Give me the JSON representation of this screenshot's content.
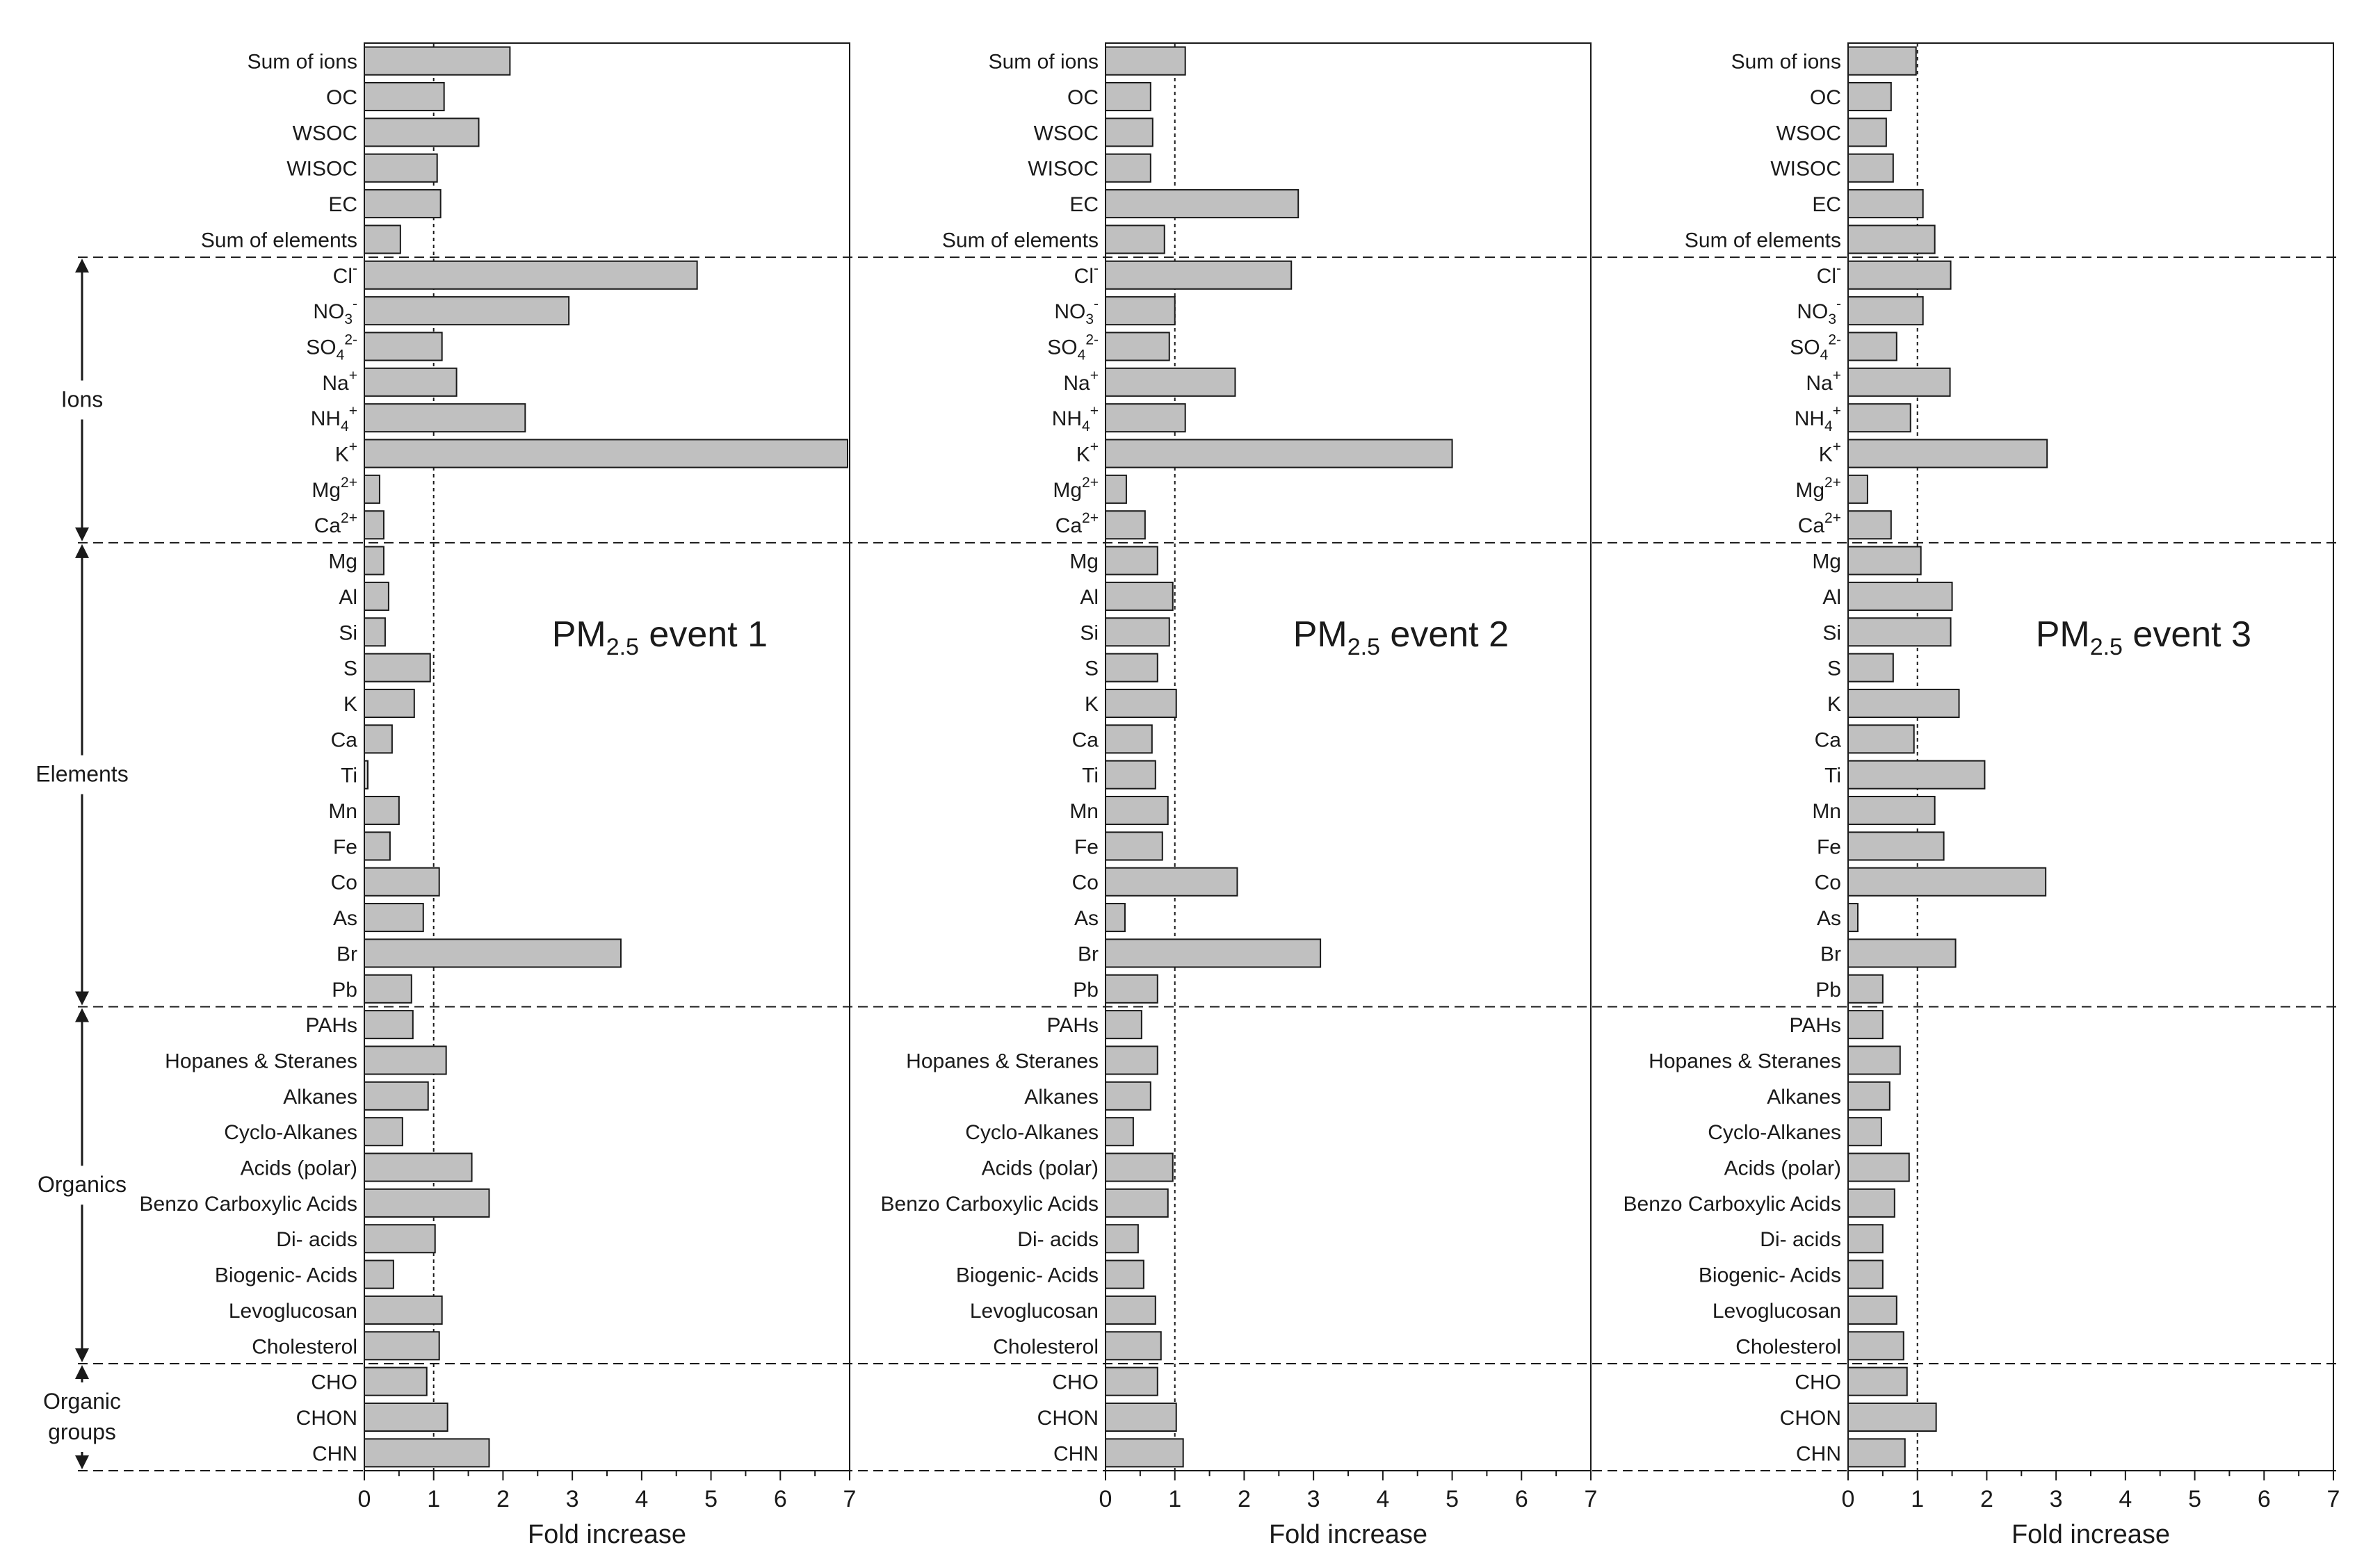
{
  "chart_data": {
    "type": "bar",
    "orientation": "horizontal",
    "xlabel": "Fold increase",
    "xlim": [
      0,
      7
    ],
    "xticks": [
      "0",
      "1",
      "2",
      "3",
      "4",
      "5",
      "6",
      "7"
    ],
    "reference_line": 1,
    "categories": [
      {
        "name": "Sum of ions",
        "sub": "",
        "sup": ""
      },
      {
        "name": "OC",
        "sub": "",
        "sup": ""
      },
      {
        "name": "WSOC",
        "sub": "",
        "sup": ""
      },
      {
        "name": "WISOC",
        "sub": "",
        "sup": ""
      },
      {
        "name": "EC",
        "sub": "",
        "sup": ""
      },
      {
        "name": "Sum of elements",
        "sub": "",
        "sup": ""
      },
      {
        "name": "Cl",
        "sub": "",
        "sup": "-"
      },
      {
        "name": "NO",
        "sub": "3",
        "sup": "-"
      },
      {
        "name": "SO",
        "sub": "4",
        "sup": "2-"
      },
      {
        "name": "Na",
        "sub": "",
        "sup": "+"
      },
      {
        "name": "NH",
        "sub": "4",
        "sup": "+"
      },
      {
        "name": "K",
        "sub": "",
        "sup": "+"
      },
      {
        "name": "Mg",
        "sub": "",
        "sup": "2+"
      },
      {
        "name": "Ca",
        "sub": "",
        "sup": "2+"
      },
      {
        "name": "Mg",
        "sub": "",
        "sup": ""
      },
      {
        "name": "Al",
        "sub": "",
        "sup": ""
      },
      {
        "name": "Si",
        "sub": "",
        "sup": ""
      },
      {
        "name": "S",
        "sub": "",
        "sup": ""
      },
      {
        "name": "K",
        "sub": "",
        "sup": ""
      },
      {
        "name": "Ca",
        "sub": "",
        "sup": ""
      },
      {
        "name": "Ti",
        "sub": "",
        "sup": ""
      },
      {
        "name": "Mn",
        "sub": "",
        "sup": ""
      },
      {
        "name": "Fe",
        "sub": "",
        "sup": ""
      },
      {
        "name": "Co",
        "sub": "",
        "sup": ""
      },
      {
        "name": "As",
        "sub": "",
        "sup": ""
      },
      {
        "name": "Br",
        "sub": "",
        "sup": ""
      },
      {
        "name": "Pb",
        "sub": "",
        "sup": ""
      },
      {
        "name": "PAHs",
        "sub": "",
        "sup": ""
      },
      {
        "name": "Hopanes & Steranes",
        "sub": "",
        "sup": ""
      },
      {
        "name": "Alkanes",
        "sub": "",
        "sup": ""
      },
      {
        "name": "Cyclo-Alkanes",
        "sub": "",
        "sup": ""
      },
      {
        "name": "Acids (polar)",
        "sub": "",
        "sup": ""
      },
      {
        "name": "Benzo Carboxylic Acids",
        "sub": "",
        "sup": ""
      },
      {
        "name": "Di- acids",
        "sub": "",
        "sup": ""
      },
      {
        "name": "Biogenic- Acids",
        "sub": "",
        "sup": ""
      },
      {
        "name": "Levoglucosan",
        "sub": "",
        "sup": ""
      },
      {
        "name": "Cholesterol",
        "sub": "",
        "sup": ""
      },
      {
        "name": "CHO",
        "sub": "",
        "sup": ""
      },
      {
        "name": "CHON",
        "sub": "",
        "sup": ""
      },
      {
        "name": "CHN",
        "sub": "",
        "sup": ""
      }
    ],
    "groups": [
      {
        "label_lines": [
          "Ions"
        ],
        "start_index": 6,
        "end_index": 13
      },
      {
        "label_lines": [
          "Elements"
        ],
        "start_index": 14,
        "end_index": 26
      },
      {
        "label_lines": [
          "Organics"
        ],
        "start_index": 27,
        "end_index": 36
      },
      {
        "label_lines": [
          "Organic",
          "groups"
        ],
        "start_index": 37,
        "end_index": 39
      }
    ],
    "series": [
      {
        "name": "PM2.5 event 1",
        "title_main": "PM",
        "title_sub": "2.5",
        "title_rest": " event 1",
        "values": [
          2.1,
          1.15,
          1.65,
          1.05,
          1.1,
          0.52,
          4.8,
          2.95,
          1.12,
          1.33,
          2.32,
          6.97,
          0.22,
          0.28,
          0.28,
          0.35,
          0.3,
          0.95,
          0.72,
          0.4,
          0.05,
          0.5,
          0.37,
          1.08,
          0.85,
          3.7,
          0.68,
          0.7,
          1.18,
          0.92,
          0.55,
          1.55,
          1.8,
          1.02,
          0.42,
          1.12,
          1.08,
          0.9,
          1.2,
          1.8
        ]
      },
      {
        "name": "PM2.5 event 2",
        "title_main": "PM",
        "title_sub": "2.5",
        "title_rest": " event 2",
        "values": [
          1.15,
          0.65,
          0.68,
          0.65,
          2.78,
          0.85,
          2.68,
          1.0,
          0.92,
          1.87,
          1.15,
          5.0,
          0.3,
          0.57,
          0.75,
          0.97,
          0.92,
          0.75,
          1.02,
          0.67,
          0.72,
          0.9,
          0.82,
          1.9,
          0.28,
          3.1,
          0.75,
          0.52,
          0.75,
          0.65,
          0.4,
          0.97,
          0.9,
          0.47,
          0.55,
          0.72,
          0.8,
          0.75,
          1.02,
          1.12
        ]
      },
      {
        "name": "PM2.5 event 3",
        "title_main": "PM",
        "title_sub": "2.5",
        "title_rest": " event 3",
        "values": [
          0.98,
          0.62,
          0.55,
          0.65,
          1.08,
          1.25,
          1.48,
          1.08,
          0.7,
          1.47,
          0.9,
          2.87,
          0.28,
          0.62,
          1.05,
          1.5,
          1.48,
          0.65,
          1.6,
          0.95,
          1.97,
          1.25,
          1.38,
          2.85,
          0.14,
          1.55,
          0.5,
          0.5,
          0.75,
          0.6,
          0.48,
          0.88,
          0.67,
          0.5,
          0.5,
          0.7,
          0.8,
          0.85,
          1.27,
          0.82
        ]
      }
    ]
  }
}
